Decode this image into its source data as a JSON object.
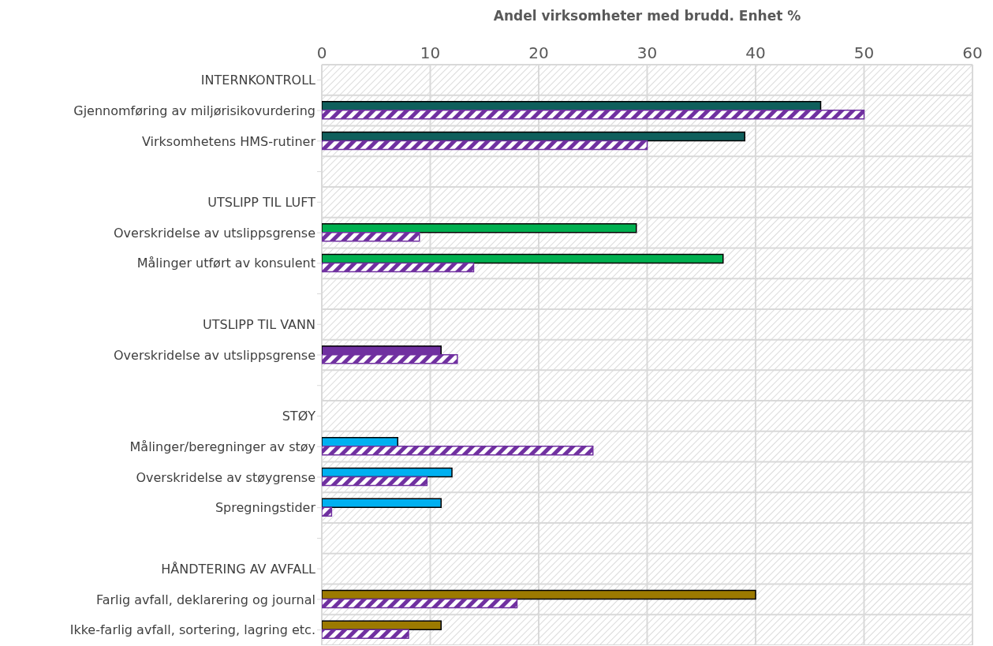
{
  "chart_data": {
    "type": "bar",
    "orientation": "horizontal",
    "xlabel": "Andel virksomheter med brudd. Enhet %",
    "categories": [
      "INTERNKONTROLL",
      "Gjennomføring av miljørisikovurdering",
      "Virksomhetens HMS-rutiner",
      null,
      "UTSLIPP TIL LUFT",
      "Overskridelse av utslippsgrense",
      "Målinger utført av konsulent",
      null,
      "UTSLIPP TIL VANN",
      "Overskridelse av utslippsgrense",
      null,
      "STØY",
      "Målinger/beregninger av støy ",
      "Overskridelse av støygrense",
      "Spregningstider",
      null,
      "HÅNDTERING AV AVFALL",
      "Farlig avfall, deklarering og journal",
      "Ikke-farlig avfall, sortering, lagring etc."
    ],
    "series": [
      {
        "colors": [
          "#0f5f5c",
          "#0f5f5c",
          "#0f5f5c",
          "#0f5f5c",
          "#00b050",
          "#00b050",
          "#00b050",
          "#00b050",
          "#7030a0",
          "#7030a0",
          "#00b0f0",
          "#00b0f0",
          "#00b0f0",
          "#00b0f0",
          "#00b0f0",
          "#9c7a00",
          "#9c7a00",
          "#9c7a00",
          "#9c7a00"
        ],
        "values": [
          null,
          46,
          39,
          null,
          null,
          29,
          37,
          null,
          null,
          11,
          null,
          null,
          7,
          12,
          11,
          null,
          null,
          40,
          11
        ]
      },
      {
        "color": "#7030a0",
        "values": [
          null,
          50,
          30,
          null,
          null,
          9,
          14,
          null,
          null,
          12.5,
          null,
          null,
          25,
          9.7,
          0.9,
          null,
          null,
          18,
          8
        ]
      }
    ],
    "xlim": [
      0,
      60
    ],
    "xticks": [
      0,
      10,
      20,
      30,
      40,
      50,
      60
    ],
    "grid": true
  }
}
